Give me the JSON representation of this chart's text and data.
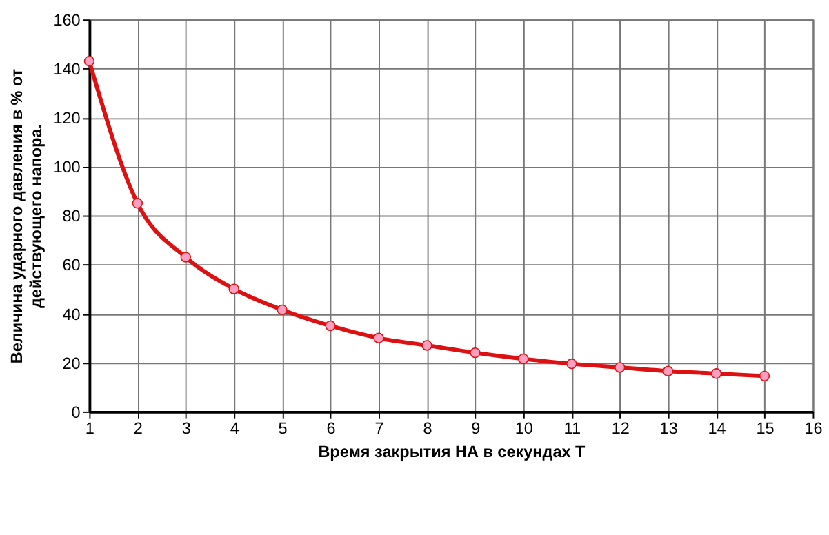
{
  "chart_data": {
    "type": "line",
    "xlabel": "Время закрытия НА в секундах Т",
    "ylabel": "Величина ударного давления в % от\nдействующего напора.",
    "x": [
      1,
      2,
      3,
      4,
      5,
      6,
      7,
      8,
      9,
      10,
      11,
      12,
      13,
      14,
      15
    ],
    "series": [
      {
        "color": "#dd1111",
        "values": [
          143,
          85,
          63,
          50,
          41.5,
          35,
          30,
          27,
          24,
          21.5,
          19.5,
          18,
          16.5,
          15.5,
          14.5
        ]
      }
    ],
    "xlim": [
      1,
      16
    ],
    "xticks": [
      1,
      2,
      3,
      4,
      5,
      6,
      7,
      8,
      9,
      10,
      11,
      12,
      13,
      14,
      15,
      16
    ],
    "ylim": [
      0,
      160
    ],
    "yticks": [
      0,
      20,
      40,
      60,
      80,
      100,
      120,
      140,
      160
    ],
    "grid": true,
    "marker": "circle",
    "line_style": "solid"
  }
}
